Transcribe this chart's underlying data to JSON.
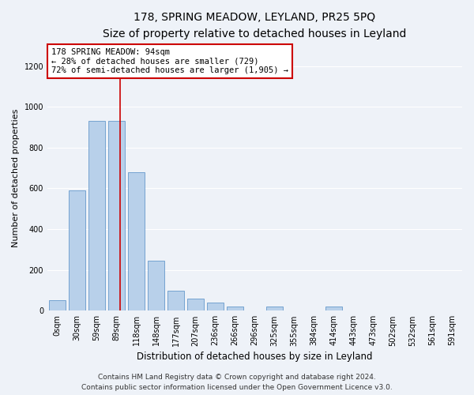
{
  "title": "178, SPRING MEADOW, LEYLAND, PR25 5PQ",
  "subtitle": "Size of property relative to detached houses in Leyland",
  "xlabel": "Distribution of detached houses by size in Leyland",
  "ylabel": "Number of detached properties",
  "bin_labels": [
    "0sqm",
    "30sqm",
    "59sqm",
    "89sqm",
    "118sqm",
    "148sqm",
    "177sqm",
    "207sqm",
    "236sqm",
    "266sqm",
    "296sqm",
    "325sqm",
    "355sqm",
    "384sqm",
    "414sqm",
    "443sqm",
    "473sqm",
    "502sqm",
    "532sqm",
    "561sqm",
    "591sqm"
  ],
  "bar_values": [
    50,
    590,
    930,
    930,
    680,
    245,
    100,
    60,
    40,
    20,
    0,
    20,
    0,
    0,
    20,
    0,
    0,
    0,
    0,
    0,
    0
  ],
  "bar_color": "#b8d0ea",
  "bar_edge_color": "#6699cc",
  "ylim": [
    0,
    1300
  ],
  "yticks": [
    0,
    200,
    400,
    600,
    800,
    1000,
    1200
  ],
  "annotation_text": "178 SPRING MEADOW: 94sqm\n← 28% of detached houses are smaller (729)\n72% of semi-detached houses are larger (1,905) →",
  "annotation_box_color": "#ffffff",
  "annotation_box_edge": "#cc0000",
  "vline_color": "#cc0000",
  "vline_x_bin": 3.17,
  "footer_line1": "Contains HM Land Registry data © Crown copyright and database right 2024.",
  "footer_line2": "Contains public sector information licensed under the Open Government Licence v3.0.",
  "background_color": "#eef2f8",
  "plot_bg_color": "#eef2f8",
  "grid_color": "#ffffff",
  "title_fontsize": 10,
  "subtitle_fontsize": 9,
  "ylabel_fontsize": 8,
  "xlabel_fontsize": 8.5,
  "tick_fontsize": 7,
  "annotation_fontsize": 7.5,
  "footer_fontsize": 6.5
}
